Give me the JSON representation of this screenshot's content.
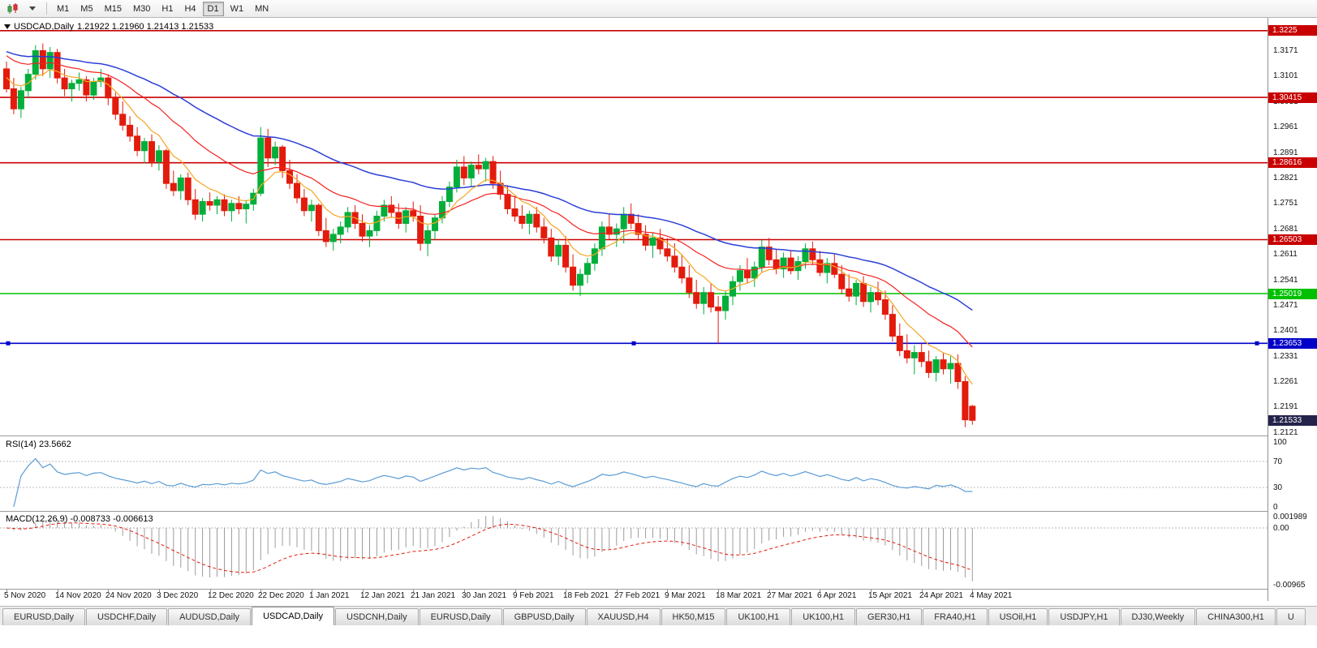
{
  "toolbar": {
    "timeframes": [
      "M1",
      "M5",
      "M15",
      "M30",
      "H1",
      "H4",
      "D1",
      "W1",
      "MN"
    ],
    "active_timeframe": "D1"
  },
  "chart_data": {
    "type": "candlestick",
    "symbol": "USDCAD",
    "timeframe": "Daily",
    "title_symbol": "USDCAD,Daily",
    "title_ohlc": "1.21922 1.21960 1.21413 1.21533",
    "ylim": [
      1.2085,
      1.326
    ],
    "axis_ticks": [
      "1.3171",
      "1.3101",
      "1.3031",
      "1.2961",
      "1.2891",
      "1.2821",
      "1.2751",
      "1.2681",
      "1.2611",
      "1.2541",
      "1.2471",
      "1.2401",
      "1.2331",
      "1.2261",
      "1.2191",
      "1.2121"
    ],
    "dates": [
      "5 Nov 2020",
      "14 Nov 2020",
      "24 Nov 2020",
      "3 Dec 2020",
      "12 Dec 2020",
      "22 Dec 2020",
      "1 Jan 2021",
      "12 Jan 2021",
      "21 Jan 2021",
      "30 Jan 2021",
      "9 Feb 2021",
      "18 Feb 2021",
      "27 Feb 2021",
      "9 Mar 2021",
      "18 Mar 2021",
      "27 Mar 2021",
      "6 Apr 2021",
      "15 Apr 2021",
      "24 Apr 2021",
      "4 May 2021"
    ],
    "hlines": [
      {
        "price": 1.3225,
        "label": "1.3225",
        "color": "#C80000",
        "handles": false
      },
      {
        "price": 1.30415,
        "label": "1.30415",
        "color": "#C80000",
        "handles": false
      },
      {
        "price": 1.28616,
        "label": "1.28616",
        "color": "#C80000",
        "handles": false
      },
      {
        "price": 1.26503,
        "label": "1.26503",
        "color": "#C80000",
        "handles": false
      },
      {
        "price": 1.25019,
        "label": "1.25019",
        "color": "#00C000",
        "handles": false
      },
      {
        "price": 1.23653,
        "label": "1.23653",
        "color": "#0000C8",
        "handles": true
      }
    ],
    "current_price": {
      "value": 1.21533,
      "label": "1.21533",
      "box_color": "#23234B"
    },
    "moving_averages": [
      {
        "name": "slow-ma",
        "color": "#2B3FD6",
        "period": 45,
        "seed": 1.3172
      },
      {
        "name": "medium-ma",
        "color": "#F52020",
        "period": 21,
        "seed": 1.3165
      },
      {
        "name": "fast-ma",
        "color": "#F5A623",
        "period": 8,
        "seed": 1.3105
      }
    ],
    "candle_up_color": "#00AE3A",
    "candle_down_color": "#E31B0C",
    "candles_ohlc": [
      [
        1.312,
        1.314,
        1.3055,
        1.3065
      ],
      [
        1.3065,
        1.3095,
        1.2995,
        1.301
      ],
      [
        1.301,
        1.307,
        1.2985,
        1.306
      ],
      [
        1.306,
        1.312,
        1.304,
        1.3105
      ],
      [
        1.3105,
        1.3185,
        1.309,
        1.317
      ],
      [
        1.317,
        1.319,
        1.31,
        1.312
      ],
      [
        1.312,
        1.318,
        1.3095,
        1.3165
      ],
      [
        1.3165,
        1.3175,
        1.308,
        1.3095
      ],
      [
        1.3095,
        1.312,
        1.3045,
        1.3065
      ],
      [
        1.3065,
        1.309,
        1.303,
        1.308
      ],
      [
        1.308,
        1.311,
        1.306,
        1.309
      ],
      [
        1.309,
        1.31,
        1.303,
        1.3048
      ],
      [
        1.3048,
        1.3095,
        1.3035,
        1.3085
      ],
      [
        1.3085,
        1.312,
        1.307,
        1.3095
      ],
      [
        1.3095,
        1.3105,
        1.302,
        1.304
      ],
      [
        1.304,
        1.3055,
        1.298,
        1.2995
      ],
      [
        1.2995,
        1.303,
        1.295,
        1.2965
      ],
      [
        1.2965,
        1.299,
        1.292,
        1.2935
      ],
      [
        1.2935,
        1.296,
        1.288,
        1.2895
      ],
      [
        1.2895,
        1.293,
        1.286,
        1.292
      ],
      [
        1.292,
        1.294,
        1.285,
        1.2865
      ],
      [
        1.2865,
        1.291,
        1.284,
        1.2895
      ],
      [
        1.2895,
        1.29,
        1.279,
        1.2805
      ],
      [
        1.2805,
        1.284,
        1.277,
        1.2785
      ],
      [
        1.2785,
        1.283,
        1.276,
        1.282
      ],
      [
        1.282,
        1.2835,
        1.2745,
        1.276
      ],
      [
        1.276,
        1.279,
        1.2705,
        1.272
      ],
      [
        1.272,
        1.2765,
        1.27,
        1.2755
      ],
      [
        1.2755,
        1.278,
        1.273,
        1.2745
      ],
      [
        1.2745,
        1.277,
        1.272,
        1.276
      ],
      [
        1.276,
        1.2775,
        1.2715,
        1.273
      ],
      [
        1.273,
        1.276,
        1.27,
        1.275
      ],
      [
        1.275,
        1.277,
        1.272,
        1.2735
      ],
      [
        1.2735,
        1.276,
        1.2695,
        1.2748
      ],
      [
        1.2748,
        1.279,
        1.273,
        1.2778
      ],
      [
        1.2778,
        1.296,
        1.277,
        1.293
      ],
      [
        1.293,
        1.2955,
        1.285,
        1.2875
      ],
      [
        1.2875,
        1.292,
        1.2855,
        1.2905
      ],
      [
        1.2905,
        1.291,
        1.282,
        1.284
      ],
      [
        1.284,
        1.287,
        1.279,
        1.2805
      ],
      [
        1.2805,
        1.283,
        1.275,
        1.2765
      ],
      [
        1.2765,
        1.279,
        1.2715,
        1.273
      ],
      [
        1.273,
        1.276,
        1.27,
        1.2745
      ],
      [
        1.2745,
        1.275,
        1.266,
        1.2675
      ],
      [
        1.2675,
        1.271,
        1.263,
        1.2645
      ],
      [
        1.2645,
        1.268,
        1.262,
        1.2665
      ],
      [
        1.2665,
        1.27,
        1.264,
        1.2685
      ],
      [
        1.2685,
        1.274,
        1.267,
        1.2725
      ],
      [
        1.2725,
        1.2745,
        1.268,
        1.2695
      ],
      [
        1.2695,
        1.272,
        1.2645,
        1.266
      ],
      [
        1.266,
        1.269,
        1.263,
        1.2675
      ],
      [
        1.2675,
        1.273,
        1.266,
        1.2715
      ],
      [
        1.2715,
        1.276,
        1.27,
        1.2745
      ],
      [
        1.2745,
        1.277,
        1.271,
        1.2725
      ],
      [
        1.2725,
        1.275,
        1.268,
        1.2695
      ],
      [
        1.2695,
        1.274,
        1.267,
        1.273
      ],
      [
        1.273,
        1.2755,
        1.27,
        1.2715
      ],
      [
        1.2715,
        1.2745,
        1.262,
        1.264
      ],
      [
        1.264,
        1.269,
        1.2605,
        1.2675
      ],
      [
        1.2675,
        1.272,
        1.265,
        1.271
      ],
      [
        1.271,
        1.277,
        1.2695,
        1.2755
      ],
      [
        1.2755,
        1.281,
        1.274,
        1.2795
      ],
      [
        1.2795,
        1.287,
        1.278,
        1.285
      ],
      [
        1.285,
        1.288,
        1.28,
        1.282
      ],
      [
        1.282,
        1.2865,
        1.2795,
        1.2855
      ],
      [
        1.2855,
        1.2885,
        1.283,
        1.2845
      ],
      [
        1.2845,
        1.2875,
        1.281,
        1.2865
      ],
      [
        1.2865,
        1.288,
        1.279,
        1.2805
      ],
      [
        1.2805,
        1.284,
        1.276,
        1.2775
      ],
      [
        1.2775,
        1.28,
        1.272,
        1.2735
      ],
      [
        1.2735,
        1.277,
        1.27,
        1.2715
      ],
      [
        1.2715,
        1.2745,
        1.268,
        1.2695
      ],
      [
        1.2695,
        1.273,
        1.2665,
        1.272
      ],
      [
        1.272,
        1.274,
        1.267,
        1.2685
      ],
      [
        1.2685,
        1.271,
        1.264,
        1.2655
      ],
      [
        1.2655,
        1.268,
        1.259,
        1.2605
      ],
      [
        1.2605,
        1.265,
        1.258,
        1.2635
      ],
      [
        1.2635,
        1.266,
        1.256,
        1.2575
      ],
      [
        1.2575,
        1.261,
        1.251,
        1.2525
      ],
      [
        1.2525,
        1.257,
        1.2495,
        1.2555
      ],
      [
        1.2555,
        1.26,
        1.253,
        1.2585
      ],
      [
        1.2585,
        1.264,
        1.2565,
        1.2625
      ],
      [
        1.2625,
        1.27,
        1.2605,
        1.2685
      ],
      [
        1.2685,
        1.272,
        1.265,
        1.2665
      ],
      [
        1.2665,
        1.2695,
        1.263,
        1.268
      ],
      [
        1.268,
        1.274,
        1.264,
        1.272
      ],
      [
        1.272,
        1.275,
        1.268,
        1.2695
      ],
      [
        1.2695,
        1.272,
        1.265,
        1.2665
      ],
      [
        1.2665,
        1.269,
        1.262,
        1.2635
      ],
      [
        1.2635,
        1.267,
        1.26,
        1.2655
      ],
      [
        1.2655,
        1.268,
        1.261,
        1.2625
      ],
      [
        1.2625,
        1.2655,
        1.259,
        1.2605
      ],
      [
        1.2605,
        1.264,
        1.256,
        1.2575
      ],
      [
        1.2575,
        1.261,
        1.253,
        1.2545
      ],
      [
        1.2545,
        1.258,
        1.249,
        1.2505
      ],
      [
        1.2505,
        1.254,
        1.246,
        1.2475
      ],
      [
        1.2475,
        1.252,
        1.2445,
        1.2505
      ],
      [
        1.2505,
        1.253,
        1.245,
        1.2465
      ],
      [
        1.2465,
        1.2495,
        1.2365,
        1.2455
      ],
      [
        1.2455,
        1.251,
        1.243,
        1.2495
      ],
      [
        1.2495,
        1.255,
        1.247,
        1.2535
      ],
      [
        1.2535,
        1.258,
        1.251,
        1.2565
      ],
      [
        1.2565,
        1.26,
        1.253,
        1.2545
      ],
      [
        1.2545,
        1.259,
        1.252,
        1.2575
      ],
      [
        1.2575,
        1.265,
        1.256,
        1.263
      ],
      [
        1.263,
        1.2655,
        1.258,
        1.2595
      ],
      [
        1.2595,
        1.2625,
        1.2555,
        1.257
      ],
      [
        1.257,
        1.2615,
        1.2545,
        1.26
      ],
      [
        1.26,
        1.262,
        1.2555,
        1.2565
      ],
      [
        1.2565,
        1.2605,
        1.254,
        1.259
      ],
      [
        1.259,
        1.264,
        1.257,
        1.2625
      ],
      [
        1.2625,
        1.2645,
        1.258,
        1.2595
      ],
      [
        1.2595,
        1.262,
        1.255,
        1.256
      ],
      [
        1.256,
        1.26,
        1.253,
        1.2585
      ],
      [
        1.2585,
        1.261,
        1.2545,
        1.2555
      ],
      [
        1.2555,
        1.258,
        1.25,
        1.2515
      ],
      [
        1.2515,
        1.2555,
        1.248,
        1.2495
      ],
      [
        1.2495,
        1.254,
        1.247,
        1.253
      ],
      [
        1.253,
        1.255,
        1.2465,
        1.248
      ],
      [
        1.248,
        1.252,
        1.245,
        1.2505
      ],
      [
        1.2505,
        1.2535,
        1.247,
        1.2485
      ],
      [
        1.2485,
        1.251,
        1.243,
        1.2445
      ],
      [
        1.2445,
        1.247,
        1.237,
        1.2385
      ],
      [
        1.2385,
        1.242,
        1.233,
        1.2345
      ],
      [
        1.2345,
        1.239,
        1.231,
        1.2325
      ],
      [
        1.2325,
        1.236,
        1.228,
        1.234
      ],
      [
        1.234,
        1.2365,
        1.23,
        1.2315
      ],
      [
        1.2315,
        1.2345,
        1.227,
        1.2285
      ],
      [
        1.2285,
        1.233,
        1.226,
        1.232
      ],
      [
        1.232,
        1.234,
        1.228,
        1.2295
      ],
      [
        1.2295,
        1.233,
        1.2255,
        1.231
      ],
      [
        1.231,
        1.2335,
        1.224,
        1.226
      ],
      [
        1.226,
        1.2275,
        1.2135,
        1.2155
      ],
      [
        1.21922,
        1.2196,
        1.21413,
        1.21533
      ]
    ]
  },
  "rsi": {
    "label": "RSI(14) 23.5662",
    "period": 14,
    "value": 23.5662,
    "line_color": "#5A9BD5",
    "scale": [
      {
        "value": 100,
        "label": "100"
      },
      {
        "value": 70,
        "label": "70"
      },
      {
        "value": 30,
        "label": "30"
      },
      {
        "value": 0,
        "label": "0"
      }
    ]
  },
  "macd": {
    "label": "MACD(12,26,9) -0.008733 -0.006613",
    "fast": 12,
    "slow": 26,
    "signal": 9,
    "macd_value": -0.008733,
    "signal_value": -0.006613,
    "hist_color": "#9C9C9C",
    "signal_color": "#E31B0C",
    "scale": [
      {
        "value": 0.001989,
        "label": "0.001989"
      },
      {
        "value": 0,
        "label": "0.00"
      },
      {
        "value": -0.00965,
        "label": "-0.00965"
      }
    ]
  },
  "tabs": {
    "active_index": 3,
    "items": [
      "EURUSD,Daily",
      "USDCHF,Daily",
      "AUDUSD,Daily",
      "USDCAD,Daily",
      "USDCNH,Daily",
      "EURUSD,Daily",
      "GBPUSD,Daily",
      "XAUUSD,H4",
      "HK50,M15",
      "UK100,H1",
      "UK100,H1",
      "GER30,H1",
      "FRA40,H1",
      "USOil,H1",
      "USDJPY,H1",
      "DJ30,Weekly",
      "CHINA300,H1",
      "U"
    ]
  }
}
